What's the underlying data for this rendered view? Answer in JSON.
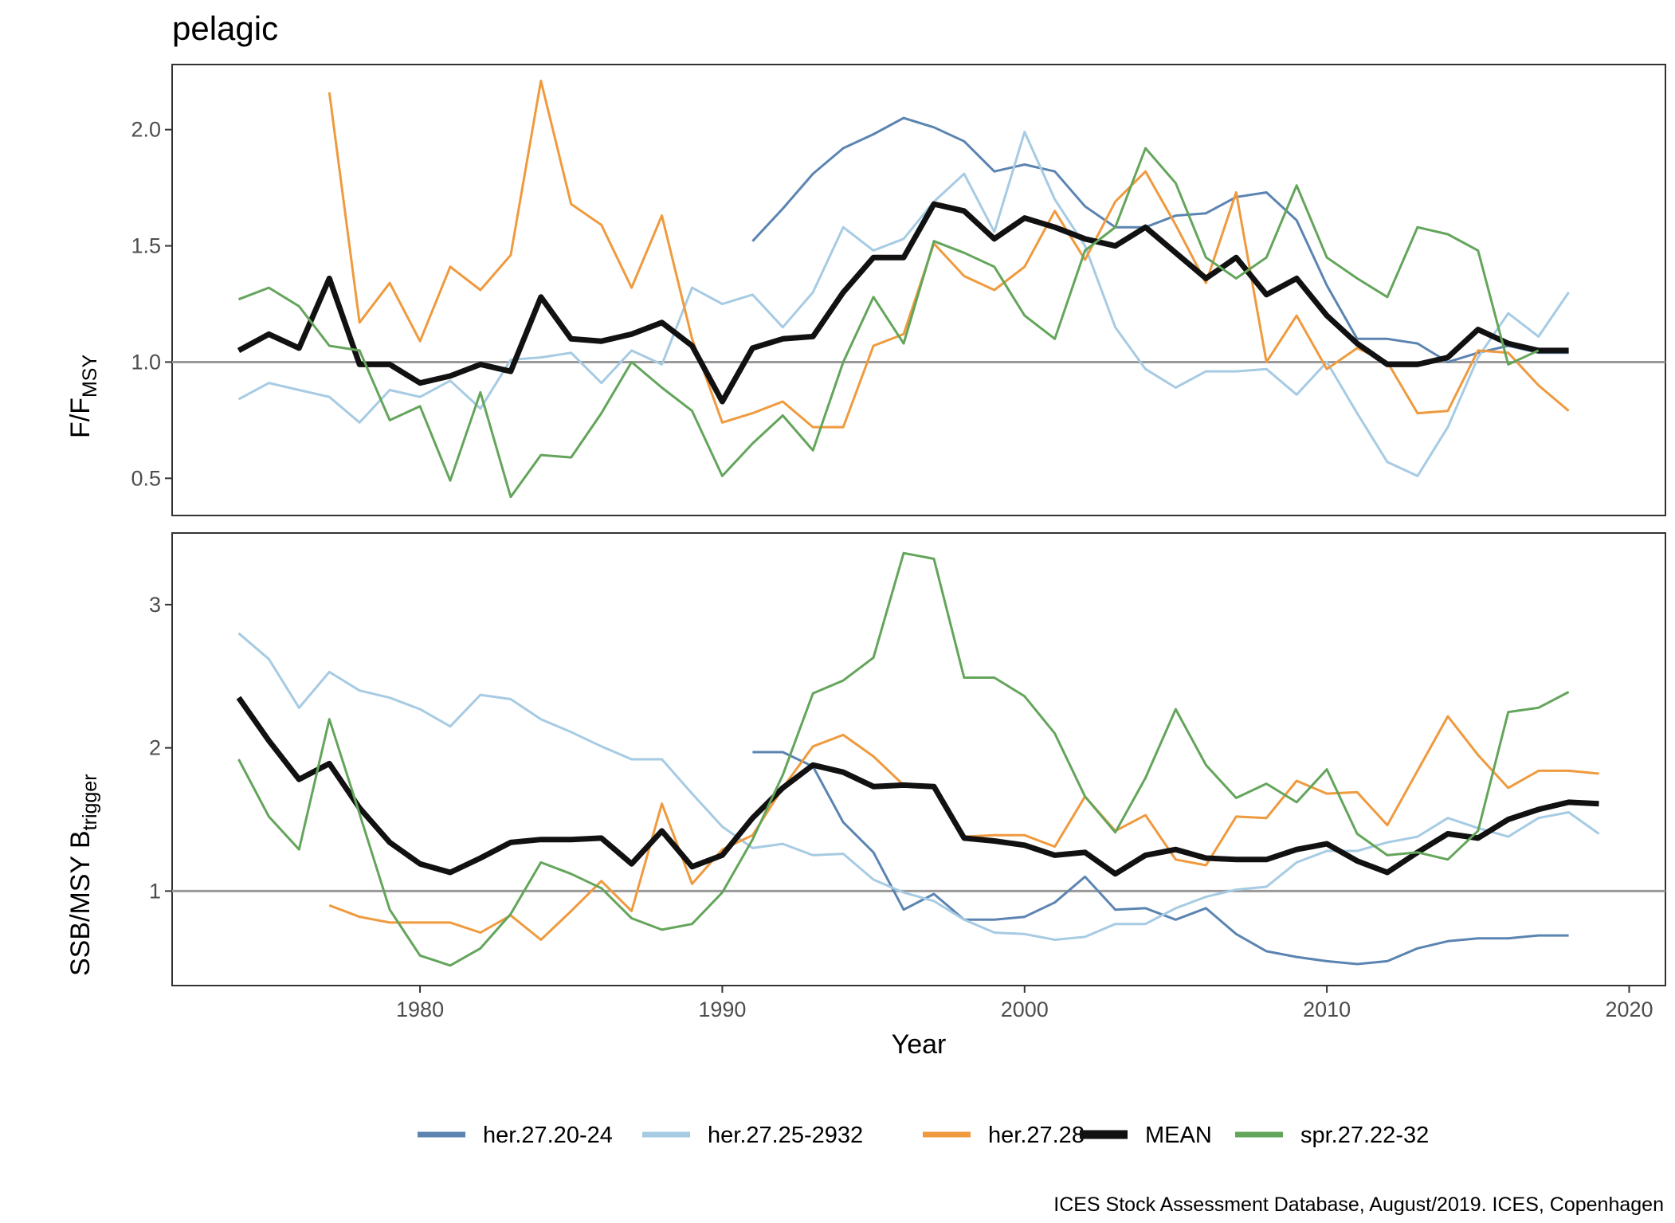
{
  "title": "pelagic",
  "caption": "ICES Stock Assessment Database, August/2019. ICES, Copenhagen",
  "chart_data": {
    "type": "line",
    "xlabel": "Year",
    "xlim": [
      1971.8,
      2021.2
    ],
    "xticks": [
      1980,
      1990,
      2000,
      2010,
      2020
    ],
    "grid": false,
    "legend_position": "bottom",
    "series_styles": {
      "her.27.20-24": {
        "color": "#5b84b1",
        "width": 3
      },
      "her.27.25-2932": {
        "color": "#a6cbe3",
        "width": 3
      },
      "her.27.28": {
        "color": "#ef9a3e",
        "width": 3
      },
      "MEAN": {
        "color": "#111111",
        "width": 7
      },
      "spr.27.22-32": {
        "color": "#63a55a",
        "width": 3
      }
    },
    "legend": [
      "her.27.20-24",
      "her.27.25-2932",
      "her.27.28",
      "MEAN",
      "spr.27.22-32"
    ],
    "panels": [
      {
        "ylabel_main": "F/F",
        "ylabel_sub": "MSY",
        "ylim": [
          0.34,
          2.28
        ],
        "yticks": [
          0.5,
          1.0,
          1.5,
          2.0
        ],
        "ytick_labels": [
          "0.5",
          "1.0",
          "1.5",
          "2.0"
        ],
        "reference_line": 1.0,
        "series": [
          {
            "name": "her.27.20-24",
            "start": 1991,
            "values": [
              1.52,
              1.66,
              1.81,
              1.92,
              1.98,
              2.05,
              2.01,
              1.95,
              1.82,
              1.85,
              1.82,
              1.67,
              1.58,
              1.58,
              1.63,
              1.64,
              1.71,
              1.73,
              1.61,
              1.33,
              1.1,
              1.1,
              1.08,
              1.0,
              1.04,
              1.07,
              1.04,
              1.04
            ]
          },
          {
            "name": "her.27.25-2932",
            "start": 1974,
            "values": [
              0.84,
              0.91,
              0.88,
              0.85,
              0.74,
              0.88,
              0.85,
              0.92,
              0.8,
              1.01,
              1.02,
              1.04,
              0.91,
              1.05,
              0.99,
              1.32,
              1.25,
              1.29,
              1.15,
              1.3,
              1.58,
              1.48,
              1.53,
              1.69,
              1.81,
              1.56,
              1.99,
              1.7,
              1.5,
              1.15,
              0.97,
              0.89,
              0.96,
              0.96,
              0.97,
              0.86,
              1.0,
              0.78,
              0.57,
              0.51,
              0.72,
              1.02,
              1.21,
              1.11,
              1.3
            ]
          },
          {
            "name": "her.27.28",
            "start": 1977,
            "values": [
              2.16,
              1.17,
              1.34,
              1.09,
              1.41,
              1.31,
              1.46,
              2.21,
              1.68,
              1.59,
              1.32,
              1.63,
              1.1,
              0.74,
              0.78,
              0.83,
              0.72,
              0.72,
              1.07,
              1.12,
              1.51,
              1.37,
              1.31,
              1.41,
              1.65,
              1.44,
              1.69,
              1.82,
              1.59,
              1.34,
              1.73,
              1.0,
              1.2,
              0.97,
              1.06,
              1.0,
              0.78,
              0.79,
              1.05,
              1.04,
              0.9,
              0.79
            ]
          },
          {
            "name": "MEAN",
            "start": 1974,
            "values": [
              1.05,
              1.12,
              1.06,
              1.36,
              0.99,
              0.99,
              0.91,
              0.94,
              0.99,
              0.96,
              1.28,
              1.1,
              1.09,
              1.12,
              1.17,
              1.07,
              0.83,
              1.06,
              1.1,
              1.11,
              1.3,
              1.45,
              1.45,
              1.68,
              1.65,
              1.53,
              1.62,
              1.58,
              1.53,
              1.5,
              1.58,
              1.47,
              1.36,
              1.45,
              1.29,
              1.36,
              1.2,
              1.08,
              0.99,
              0.99,
              1.02,
              1.14,
              1.08,
              1.05,
              1.05
            ]
          },
          {
            "name": "spr.27.22-32",
            "start": 1974,
            "values": [
              1.27,
              1.32,
              1.24,
              1.07,
              1.05,
              0.75,
              0.81,
              0.49,
              0.87,
              0.42,
              0.6,
              0.59,
              0.78,
              1.0,
              0.89,
              0.79,
              0.51,
              0.65,
              0.77,
              0.62,
              1.0,
              1.28,
              1.08,
              1.52,
              1.47,
              1.41,
              1.2,
              1.1,
              1.48,
              1.58,
              1.92,
              1.77,
              1.45,
              1.36,
              1.45,
              1.76,
              1.45,
              1.36,
              1.28,
              1.58,
              1.55,
              1.48,
              0.99,
              1.05
            ]
          }
        ]
      },
      {
        "ylabel_main": "SSB/MSY B",
        "ylabel_sub": "trigger",
        "ylim": [
          0.34,
          3.5
        ],
        "yticks": [
          1,
          2,
          3
        ],
        "ytick_labels": [
          "1",
          "2",
          "3"
        ],
        "reference_line": 1.0,
        "series": [
          {
            "name": "her.27.20-24",
            "start": 1991,
            "values": [
              1.97,
              1.97,
              1.87,
              1.48,
              1.27,
              0.87,
              0.98,
              0.8,
              0.8,
              0.82,
              0.92,
              1.1,
              0.87,
              0.88,
              0.8,
              0.88,
              0.7,
              0.58,
              0.54,
              0.51,
              0.49,
              0.51,
              0.6,
              0.65,
              0.67,
              0.67,
              0.69,
              0.69
            ]
          },
          {
            "name": "her.27.25-2932",
            "start": 1974,
            "values": [
              2.8,
              2.62,
              2.28,
              2.53,
              2.4,
              2.35,
              2.27,
              2.15,
              2.37,
              2.34,
              2.2,
              2.11,
              2.01,
              1.92,
              1.92,
              1.68,
              1.45,
              1.3,
              1.33,
              1.25,
              1.26,
              1.08,
              0.99,
              0.93,
              0.8,
              0.71,
              0.7,
              0.66,
              0.68,
              0.77,
              0.77,
              0.88,
              0.96,
              1.01,
              1.03,
              1.2,
              1.28,
              1.28,
              1.34,
              1.38,
              1.51,
              1.44,
              1.38,
              1.51,
              1.55,
              1.4
            ]
          },
          {
            "name": "her.27.28",
            "start": 1977,
            "values": [
              0.9,
              0.82,
              0.78,
              0.78,
              0.78,
              0.71,
              0.83,
              0.66,
              0.86,
              1.07,
              0.86,
              1.61,
              1.05,
              1.29,
              1.39,
              1.72,
              2.01,
              2.09,
              1.94,
              1.74,
              null,
              1.38,
              1.39,
              1.39,
              1.31,
              1.66,
              1.42,
              1.53,
              1.22,
              1.18,
              1.52,
              1.51,
              1.77,
              1.68,
              1.69,
              1.46,
              1.84,
              2.22,
              1.95,
              1.72,
              1.84,
              1.84,
              1.82
            ]
          },
          {
            "name": "MEAN",
            "start": 1974,
            "values": [
              2.35,
              2.05,
              1.78,
              1.89,
              1.58,
              1.34,
              1.19,
              1.13,
              1.23,
              1.34,
              1.36,
              1.36,
              1.37,
              1.19,
              1.42,
              1.17,
              1.25,
              1.51,
              1.72,
              1.88,
              1.83,
              1.73,
              1.74,
              1.73,
              1.37,
              1.35,
              1.32,
              1.25,
              1.27,
              1.12,
              1.25,
              1.29,
              1.23,
              1.22,
              1.22,
              1.29,
              1.33,
              1.21,
              1.13,
              1.27,
              1.4,
              1.37,
              1.5,
              1.57,
              1.62,
              1.61
            ]
          },
          {
            "name": "spr.27.22-32",
            "start": 1974,
            "values": [
              1.92,
              1.52,
              1.29,
              2.2,
              1.54,
              0.87,
              0.55,
              0.48,
              0.6,
              0.84,
              1.2,
              1.12,
              1.02,
              0.81,
              0.73,
              0.77,
              0.99,
              1.36,
              1.81,
              2.38,
              2.47,
              2.63,
              3.36,
              3.32,
              2.49,
              2.49,
              2.36,
              2.1,
              1.66,
              1.41,
              1.79,
              2.27,
              1.88,
              1.65,
              1.75,
              1.62,
              1.85,
              1.4,
              1.25,
              1.27,
              1.22,
              1.42,
              2.25,
              2.28,
              2.39
            ]
          }
        ]
      }
    ]
  }
}
